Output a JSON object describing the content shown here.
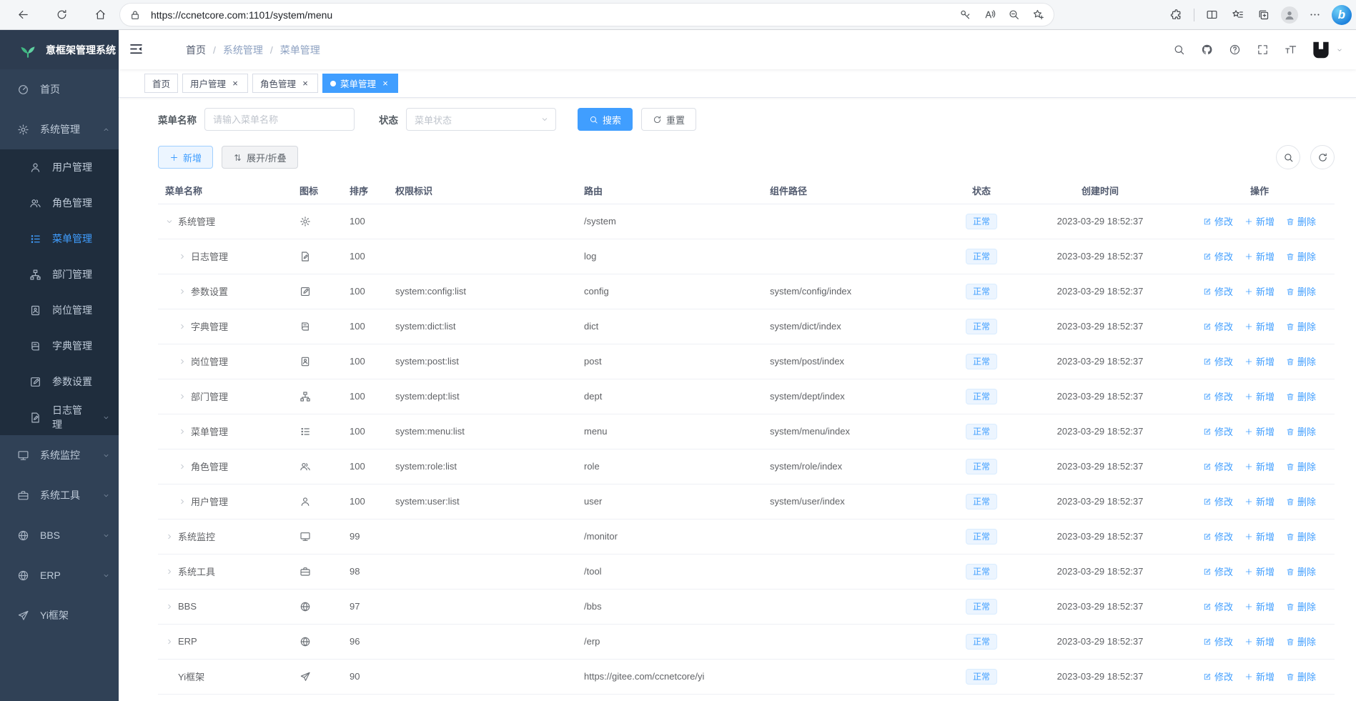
{
  "colors": {
    "accent": "#409eff",
    "sidebar_bg": "#304156",
    "submenu_bg": "#1f2d3d",
    "tag_bg": "#ecf5ff",
    "tag_border": "#d9ecff",
    "active_tab_bg": "#409eff"
  },
  "browser": {
    "url": "https://ccnetcore.com:1101/system/menu",
    "left_icons": [
      "back-icon",
      "refresh-icon",
      "home-icon"
    ],
    "pill_icons": [
      "key-icon",
      "read-aloud-icon",
      "zoom-out-icon",
      "favorite-add-icon"
    ],
    "right_icons": [
      "extensions-icon",
      "split-screen-icon",
      "favorites-icon",
      "collections-icon",
      "profile-icon",
      "more-icon",
      "copilot-icon"
    ]
  },
  "sidebar": {
    "logo_text": "意框架管理系统",
    "items": [
      {
        "key": "home",
        "label": "首页",
        "icon": "dashboard-icon"
      },
      {
        "key": "system",
        "label": "系统管理",
        "icon": "gear-icon",
        "expanded": true,
        "children": [
          {
            "key": "user",
            "label": "用户管理",
            "icon": "user-icon"
          },
          {
            "key": "role",
            "label": "角色管理",
            "icon": "users-icon"
          },
          {
            "key": "menu",
            "label": "菜单管理",
            "icon": "menu-list-icon",
            "active": true
          },
          {
            "key": "dept",
            "label": "部门管理",
            "icon": "dept-tree-icon"
          },
          {
            "key": "post",
            "label": "岗位管理",
            "icon": "post-badge-icon"
          },
          {
            "key": "dict",
            "label": "字典管理",
            "icon": "dict-book-icon"
          },
          {
            "key": "config",
            "label": "参数设置",
            "icon": "edit-icon"
          },
          {
            "key": "log",
            "label": "日志管理",
            "icon": "log-icon",
            "caret": "down"
          }
        ]
      },
      {
        "key": "monitor",
        "label": "系统监控",
        "icon": "monitor-icon",
        "caret": "down"
      },
      {
        "key": "tool",
        "label": "系统工具",
        "icon": "toolbox-icon",
        "caret": "down"
      },
      {
        "key": "bbs",
        "label": "BBS",
        "icon": "globe-icon",
        "caret": "down"
      },
      {
        "key": "erp",
        "label": "ERP",
        "icon": "globe-icon",
        "caret": "down"
      },
      {
        "key": "yi-framework",
        "label": "Yi框架",
        "icon": "paper-plane-icon"
      }
    ]
  },
  "navbar": {
    "breadcrumb": [
      "首页",
      "系统管理",
      "菜单管理"
    ],
    "icons": [
      "search-icon",
      "github-icon",
      "question-icon",
      "fullscreen-icon",
      "font-size-icon"
    ]
  },
  "tabs": [
    {
      "key": "home",
      "label": "首页",
      "closable": false,
      "active": false
    },
    {
      "key": "user",
      "label": "用户管理",
      "closable": true,
      "active": false
    },
    {
      "key": "role",
      "label": "角色管理",
      "closable": true,
      "active": false
    },
    {
      "key": "menu",
      "label": "菜单管理",
      "closable": true,
      "active": true
    }
  ],
  "filter": {
    "name_label": "菜单名称",
    "name_placeholder": "请输入菜单名称",
    "status_label": "状态",
    "status_placeholder": "菜单状态",
    "search_label": "搜索",
    "reset_label": "重置"
  },
  "toolbar": {
    "add_label": "新增",
    "expand_label": "展开/折叠"
  },
  "table": {
    "columns": [
      {
        "key": "name",
        "label": "菜单名称"
      },
      {
        "key": "icon",
        "label": "图标"
      },
      {
        "key": "order",
        "label": "排序"
      },
      {
        "key": "perm",
        "label": "权限标识"
      },
      {
        "key": "route",
        "label": "路由"
      },
      {
        "key": "component",
        "label": "组件路径"
      },
      {
        "key": "status",
        "label": "状态"
      },
      {
        "key": "created",
        "label": "创建时间"
      },
      {
        "key": "actions",
        "label": "操作"
      }
    ],
    "actions": {
      "edit": "修改",
      "add": "新增",
      "delete": "删除"
    },
    "rows": [
      {
        "key": "system",
        "name": "系统管理",
        "icon": "gear-icon",
        "indent": 0,
        "expand": "expanded",
        "order": "100",
        "perm": "",
        "route": "/system",
        "component": "",
        "status": "正常",
        "created": "2023-03-29 18:52:37"
      },
      {
        "key": "log",
        "name": "日志管理",
        "icon": "log-icon",
        "indent": 1,
        "expand": "collapsed",
        "order": "100",
        "perm": "",
        "route": "log",
        "component": "",
        "status": "正常",
        "created": "2023-03-29 18:52:37"
      },
      {
        "key": "config",
        "name": "参数设置",
        "icon": "edit-icon",
        "indent": 1,
        "expand": "collapsed",
        "order": "100",
        "perm": "system:config:list",
        "route": "config",
        "component": "system/config/index",
        "status": "正常",
        "created": "2023-03-29 18:52:37"
      },
      {
        "key": "dict",
        "name": "字典管理",
        "icon": "dict-book-icon",
        "indent": 1,
        "expand": "collapsed",
        "order": "100",
        "perm": "system:dict:list",
        "route": "dict",
        "component": "system/dict/index",
        "status": "正常",
        "created": "2023-03-29 18:52:37"
      },
      {
        "key": "post",
        "name": "岗位管理",
        "icon": "post-badge-icon",
        "indent": 1,
        "expand": "collapsed",
        "order": "100",
        "perm": "system:post:list",
        "route": "post",
        "component": "system/post/index",
        "status": "正常",
        "created": "2023-03-29 18:52:37"
      },
      {
        "key": "dept",
        "name": "部门管理",
        "icon": "dept-tree-icon",
        "indent": 1,
        "expand": "collapsed",
        "order": "100",
        "perm": "system:dept:list",
        "route": "dept",
        "component": "system/dept/index",
        "status": "正常",
        "created": "2023-03-29 18:52:37"
      },
      {
        "key": "menu",
        "name": "菜单管理",
        "icon": "menu-list-icon",
        "indent": 1,
        "expand": "collapsed",
        "order": "100",
        "perm": "system:menu:list",
        "route": "menu",
        "component": "system/menu/index",
        "status": "正常",
        "created": "2023-03-29 18:52:37"
      },
      {
        "key": "role",
        "name": "角色管理",
        "icon": "users-icon",
        "indent": 1,
        "expand": "collapsed",
        "order": "100",
        "perm": "system:role:list",
        "route": "role",
        "component": "system/role/index",
        "status": "正常",
        "created": "2023-03-29 18:52:37"
      },
      {
        "key": "user",
        "name": "用户管理",
        "icon": "user-icon",
        "indent": 1,
        "expand": "collapsed",
        "order": "100",
        "perm": "system:user:list",
        "route": "user",
        "component": "system/user/index",
        "status": "正常",
        "created": "2023-03-29 18:52:37"
      },
      {
        "key": "monitor",
        "name": "系统监控",
        "icon": "monitor-icon",
        "indent": 0,
        "expand": "collapsed",
        "order": "99",
        "perm": "",
        "route": "/monitor",
        "component": "",
        "status": "正常",
        "created": "2023-03-29 18:52:37"
      },
      {
        "key": "tool",
        "name": "系统工具",
        "icon": "toolbox-icon",
        "indent": 0,
        "expand": "collapsed",
        "order": "98",
        "perm": "",
        "route": "/tool",
        "component": "",
        "status": "正常",
        "created": "2023-03-29 18:52:37"
      },
      {
        "key": "bbs",
        "name": "BBS",
        "icon": "globe-icon",
        "indent": 0,
        "expand": "collapsed",
        "order": "97",
        "perm": "",
        "route": "/bbs",
        "component": "",
        "status": "正常",
        "created": "2023-03-29 18:52:37"
      },
      {
        "key": "erp",
        "name": "ERP",
        "icon": "globe-icon",
        "indent": 0,
        "expand": "collapsed",
        "order": "96",
        "perm": "",
        "route": "/erp",
        "component": "",
        "status": "正常",
        "created": "2023-03-29 18:52:37"
      },
      {
        "key": "yi",
        "name": "Yi框架",
        "icon": "paper-plane-icon",
        "indent": 0,
        "expand": "none",
        "order": "90",
        "perm": "",
        "route": "https://gitee.com/ccnetcore/yi",
        "component": "",
        "status": "正常",
        "created": "2023-03-29 18:52:37"
      }
    ]
  }
}
